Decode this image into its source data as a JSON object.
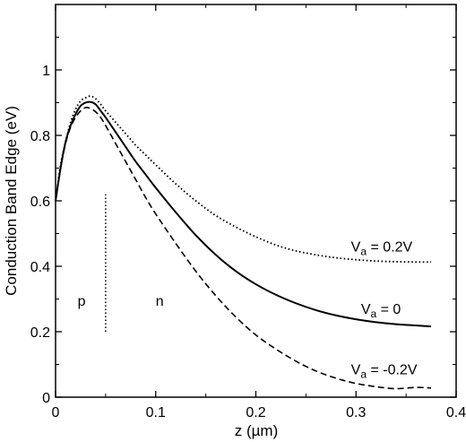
{
  "chart_data": {
    "type": "line",
    "xlabel": "z  (µm)",
    "ylabel": "Conduction Band Edge  (eV)",
    "xlim": [
      0,
      0.4
    ],
    "ylim": [
      0,
      1.2
    ],
    "xticks": [
      "0",
      "0.1",
      "0.2",
      "0.3",
      "0.4"
    ],
    "yticks": [
      "0",
      "0.2",
      "0.4",
      "0.6",
      "0.8",
      "1"
    ],
    "grid": false,
    "series": [
      {
        "name": "V_a = 0.2V",
        "style": "dotted",
        "x": [
          0,
          0.005,
          0.01,
          0.015,
          0.02,
          0.025,
          0.03,
          0.035,
          0.04,
          0.045,
          0.05,
          0.06,
          0.07,
          0.08,
          0.09,
          0.1,
          0.12,
          0.14,
          0.16,
          0.18,
          0.2,
          0.22,
          0.24,
          0.26,
          0.28,
          0.3,
          0.32,
          0.34,
          0.36,
          0.375
        ],
        "y": [
          0.6,
          0.71,
          0.78,
          0.84,
          0.88,
          0.905,
          0.915,
          0.92,
          0.912,
          0.895,
          0.875,
          0.84,
          0.805,
          0.77,
          0.74,
          0.71,
          0.652,
          0.6,
          0.555,
          0.52,
          0.49,
          0.465,
          0.447,
          0.435,
          0.426,
          0.42,
          0.416,
          0.414,
          0.413,
          0.413
        ]
      },
      {
        "name": "V_a = 0",
        "style": "solid",
        "x": [
          0,
          0.005,
          0.01,
          0.015,
          0.02,
          0.025,
          0.03,
          0.035,
          0.04,
          0.045,
          0.05,
          0.06,
          0.07,
          0.08,
          0.09,
          0.1,
          0.12,
          0.14,
          0.16,
          0.18,
          0.2,
          0.22,
          0.24,
          0.26,
          0.28,
          0.3,
          0.32,
          0.34,
          0.36,
          0.375
        ],
        "y": [
          0.6,
          0.7,
          0.78,
          0.83,
          0.865,
          0.89,
          0.9,
          0.902,
          0.895,
          0.875,
          0.855,
          0.81,
          0.765,
          0.72,
          0.68,
          0.64,
          0.565,
          0.495,
          0.435,
          0.385,
          0.345,
          0.313,
          0.287,
          0.266,
          0.25,
          0.238,
          0.229,
          0.223,
          0.219,
          0.216
        ]
      },
      {
        "name": "V_a = -0.2V",
        "style": "dashed",
        "x": [
          0,
          0.005,
          0.01,
          0.015,
          0.02,
          0.025,
          0.03,
          0.035,
          0.04,
          0.045,
          0.05,
          0.06,
          0.07,
          0.08,
          0.09,
          0.1,
          0.12,
          0.14,
          0.16,
          0.18,
          0.2,
          0.22,
          0.24,
          0.26,
          0.28,
          0.3,
          0.32,
          0.34,
          0.36,
          0.375
        ],
        "y": [
          0.6,
          0.7,
          0.775,
          0.825,
          0.855,
          0.875,
          0.885,
          0.882,
          0.872,
          0.855,
          0.83,
          0.775,
          0.72,
          0.665,
          0.61,
          0.56,
          0.47,
          0.385,
          0.31,
          0.245,
          0.19,
          0.147,
          0.11,
          0.08,
          0.058,
          0.042,
          0.032,
          0.026,
          0.03,
          0.028
        ]
      }
    ],
    "annotations": {
      "series_labels": [
        {
          "main": "V",
          "sub": "a",
          "rest": " = 0.2V",
          "x": 0.295,
          "y": 0.445
        },
        {
          "main": "V",
          "sub": "a",
          "rest": " = 0",
          "x": 0.305,
          "y": 0.255
        },
        {
          "main": "V",
          "sub": "a",
          "rest": " = -0.2V",
          "x": 0.295,
          "y": 0.07
        }
      ],
      "region_labels": [
        {
          "text": "p",
          "x": 0.022,
          "y": 0.28
        },
        {
          "text": "n",
          "x": 0.1,
          "y": 0.28
        }
      ],
      "junction": {
        "x": 0.05,
        "y_from": 0.2,
        "y_to": 0.62
      }
    }
  }
}
